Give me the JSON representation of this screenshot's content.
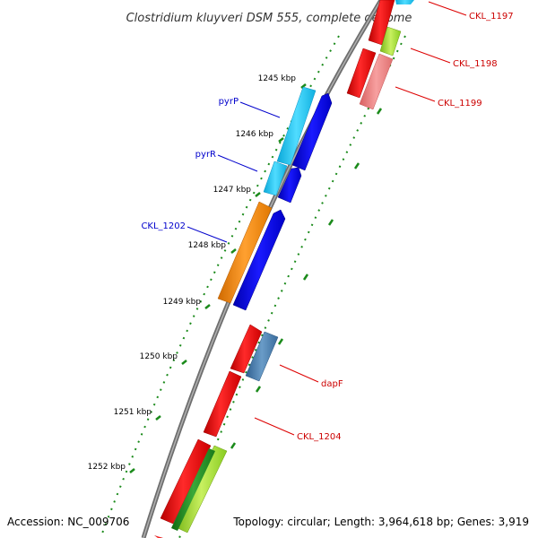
{
  "title": "Clostridium kluyveri DSM 555, complete genome",
  "footer": {
    "accession": "Accession: NC_009706",
    "summary": "Topology: circular; Length: 3,964,618 bp; Genes: 3,919"
  },
  "ticks": [
    "1245 kbp",
    "1246 kbp",
    "1247 kbp",
    "1248 kbp",
    "1249 kbp",
    "1250 kbp",
    "1251 kbp",
    "1252 kbp"
  ],
  "labels_left": [
    "pyrP",
    "pyrR",
    "CKL_1202"
  ],
  "labels_right": [
    "CKL_1197",
    "CKL_1198",
    "CKL_1199",
    "dapF",
    "CKL_1204"
  ],
  "colors": {
    "backbone": "#7a7a7a",
    "cds_red": "#ee0000",
    "pink": "#f08080",
    "cyan": "#1ec8f0",
    "blue": "#0000e0",
    "orange": "#ff8c00",
    "steel": "#4a7fb0",
    "lime": "#99dd22",
    "green": "#228822",
    "dots": "#1a8a1a"
  }
}
